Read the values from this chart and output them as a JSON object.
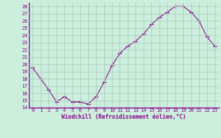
{
  "x": [
    0,
    1,
    2,
    3,
    4,
    5,
    6,
    7,
    8,
    9,
    10,
    11,
    12,
    13,
    14,
    15,
    16,
    17,
    18,
    19,
    20,
    21,
    22,
    23
  ],
  "y": [
    19.5,
    18.0,
    16.5,
    14.8,
    15.5,
    14.8,
    14.8,
    14.5,
    15.5,
    17.5,
    19.8,
    21.5,
    22.5,
    23.2,
    24.2,
    25.5,
    26.5,
    27.2,
    28.0,
    28.0,
    27.2,
    26.0,
    23.8,
    22.5
  ],
  "line_color": "#880088",
  "marker": "+",
  "bg_color": "#cceedd",
  "grid_color": "#aaccbb",
  "xlabel": "Windchill (Refroidissement éolien,°C)",
  "ylim": [
    14,
    28.5
  ],
  "xlim": [
    -0.5,
    23.5
  ],
  "xticks": [
    0,
    1,
    2,
    3,
    4,
    5,
    6,
    7,
    8,
    9,
    10,
    11,
    12,
    13,
    14,
    15,
    16,
    17,
    18,
    19,
    20,
    21,
    22,
    23
  ],
  "yticks": [
    14,
    15,
    16,
    17,
    18,
    19,
    20,
    21,
    22,
    23,
    24,
    25,
    26,
    27,
    28
  ],
  "font_color": "#880088",
  "tick_fontsize": 5.2,
  "label_fontsize": 5.8
}
